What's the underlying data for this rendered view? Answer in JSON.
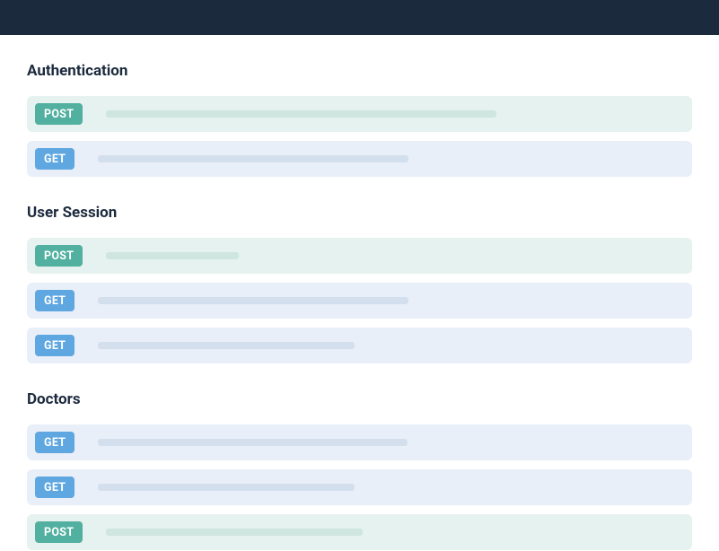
{
  "colors": {
    "header_bg": "#1c2a3d",
    "page_bg": "#ffffff",
    "title_text": "#1c2a3d",
    "post_row_bg": "#e6f2ef",
    "get_row_bg": "#e9eff8",
    "post_badge_bg": "#52b0a0",
    "get_badge_bg": "#5fa7e0",
    "badge_text": "#ffffff",
    "post_placeholder": "#cfe5df",
    "get_placeholder": "#d4dfed"
  },
  "sections": [
    {
      "title": "Authentication",
      "endpoints": [
        {
          "method": "POST",
          "placeholder_width": 435
        },
        {
          "method": "GET",
          "placeholder_width": 346
        }
      ]
    },
    {
      "title": "User Session",
      "endpoints": [
        {
          "method": "POST",
          "placeholder_width": 148
        },
        {
          "method": "GET",
          "placeholder_width": 346
        },
        {
          "method": "GET",
          "placeholder_width": 286
        }
      ]
    },
    {
      "title": "Doctors",
      "endpoints": [
        {
          "method": "GET",
          "placeholder_width": 345
        },
        {
          "method": "GET",
          "placeholder_width": 286
        },
        {
          "method": "POST",
          "placeholder_width": 286
        }
      ]
    }
  ]
}
